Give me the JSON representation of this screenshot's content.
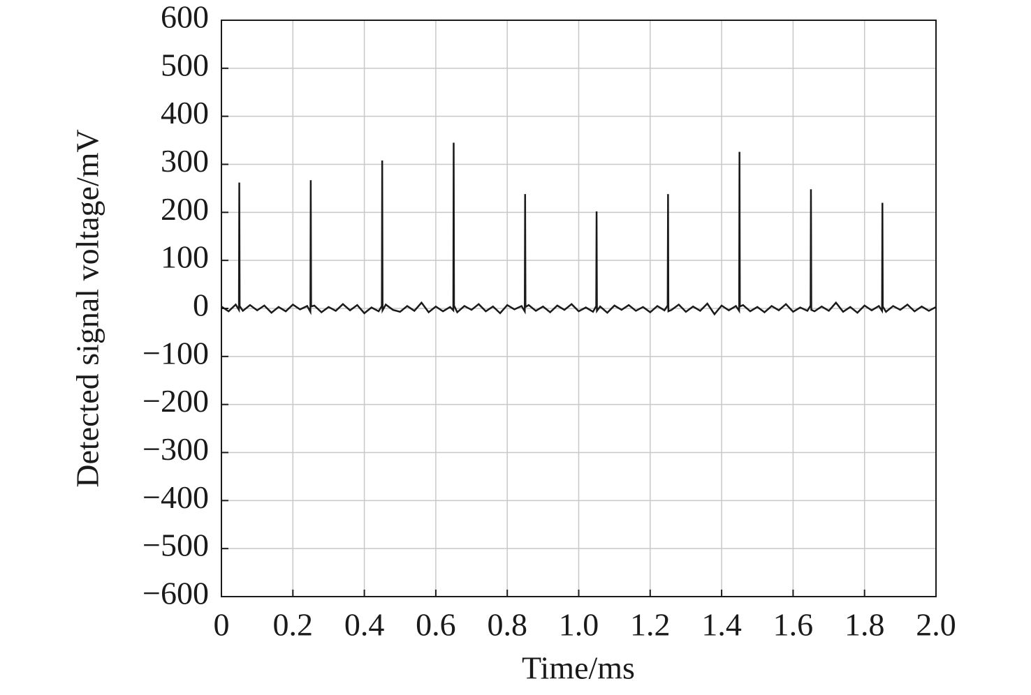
{
  "chart_data": {
    "type": "line",
    "xlabel": "Time/ms",
    "ylabel": "Detected signal voltage/mV",
    "x": [
      0,
      0.02,
      0.04,
      0.049,
      0.05,
      0.051,
      0.06,
      0.08,
      0.1,
      0.12,
      0.14,
      0.16,
      0.18,
      0.2,
      0.22,
      0.24,
      0.249,
      0.25,
      0.251,
      0.26,
      0.28,
      0.3,
      0.32,
      0.34,
      0.36,
      0.38,
      0.4,
      0.42,
      0.44,
      0.449,
      0.45,
      0.451,
      0.46,
      0.48,
      0.5,
      0.52,
      0.54,
      0.56,
      0.58,
      0.6,
      0.62,
      0.64,
      0.649,
      0.65,
      0.651,
      0.66,
      0.68,
      0.7,
      0.72,
      0.74,
      0.76,
      0.78,
      0.8,
      0.82,
      0.84,
      0.849,
      0.85,
      0.851,
      0.86,
      0.88,
      0.9,
      0.92,
      0.94,
      0.96,
      0.98,
      1.0,
      1.02,
      1.04,
      1.049,
      1.05,
      1.051,
      1.06,
      1.08,
      1.1,
      1.12,
      1.14,
      1.16,
      1.18,
      1.2,
      1.22,
      1.24,
      1.249,
      1.25,
      1.251,
      1.26,
      1.28,
      1.3,
      1.32,
      1.34,
      1.36,
      1.38,
      1.4,
      1.42,
      1.44,
      1.449,
      1.45,
      1.451,
      1.46,
      1.48,
      1.5,
      1.52,
      1.54,
      1.56,
      1.58,
      1.6,
      1.62,
      1.64,
      1.649,
      1.65,
      1.651,
      1.66,
      1.68,
      1.7,
      1.72,
      1.74,
      1.76,
      1.78,
      1.8,
      1.82,
      1.84,
      1.849,
      1.85,
      1.851,
      1.86,
      1.88,
      1.9,
      1.92,
      1.94,
      1.96,
      1.98,
      2.0
    ],
    "series": [
      {
        "color": "#1a1a1a",
        "values": [
          4,
          -6,
          8,
          -3,
          262,
          5,
          -5,
          7,
          -4,
          6,
          -9,
          3,
          -6,
          8,
          -2,
          5,
          -7,
          267,
          4,
          6,
          -8,
          3,
          -5,
          9,
          -4,
          7,
          -10,
          2,
          -6,
          5,
          308,
          -4,
          8,
          -3,
          -7,
          5,
          -5,
          12,
          -8,
          4,
          -6,
          3,
          -4,
          345,
          6,
          -8,
          5,
          -3,
          9,
          -6,
          4,
          -10,
          7,
          -2,
          5,
          -6,
          238,
          3,
          7,
          -5,
          4,
          -8,
          6,
          -3,
          9,
          -6,
          2,
          -7,
          5,
          202,
          -5,
          4,
          -9,
          6,
          -3,
          7,
          -5,
          3,
          -8,
          5,
          -4,
          6,
          238,
          -6,
          -3,
          8,
          -7,
          4,
          -5,
          10,
          -12,
          6,
          -4,
          5,
          -5,
          326,
          4,
          7,
          -6,
          3,
          -8,
          5,
          -4,
          9,
          -7,
          2,
          -5,
          6,
          248,
          -3,
          -6,
          4,
          -5,
          12,
          -7,
          3,
          -9,
          6,
          -4,
          5,
          -5,
          220,
          4,
          -7,
          5,
          -3,
          8,
          -6,
          4,
          -5,
          3
        ]
      }
    ],
    "xlim": [
      0,
      2.0
    ],
    "xticks": [
      0,
      0.2,
      0.4,
      0.6,
      0.8,
      {
        "value": 1,
        "label": "1.0"
      },
      1.2,
      1.4,
      1.6,
      1.8,
      {
        "value": 2,
        "label": "2.0"
      }
    ],
    "ylim": [
      -600,
      600
    ],
    "yticks": [
      {
        "value": -600,
        "label": "−600"
      },
      {
        "value": -500,
        "label": "−500"
      },
      {
        "value": -400,
        "label": "−400"
      },
      {
        "value": -300,
        "label": "−300"
      },
      {
        "value": -200,
        "label": "−200"
      },
      {
        "value": -100,
        "label": "−100"
      },
      0,
      100,
      200,
      300,
      400,
      500,
      600
    ],
    "grid": true
  }
}
